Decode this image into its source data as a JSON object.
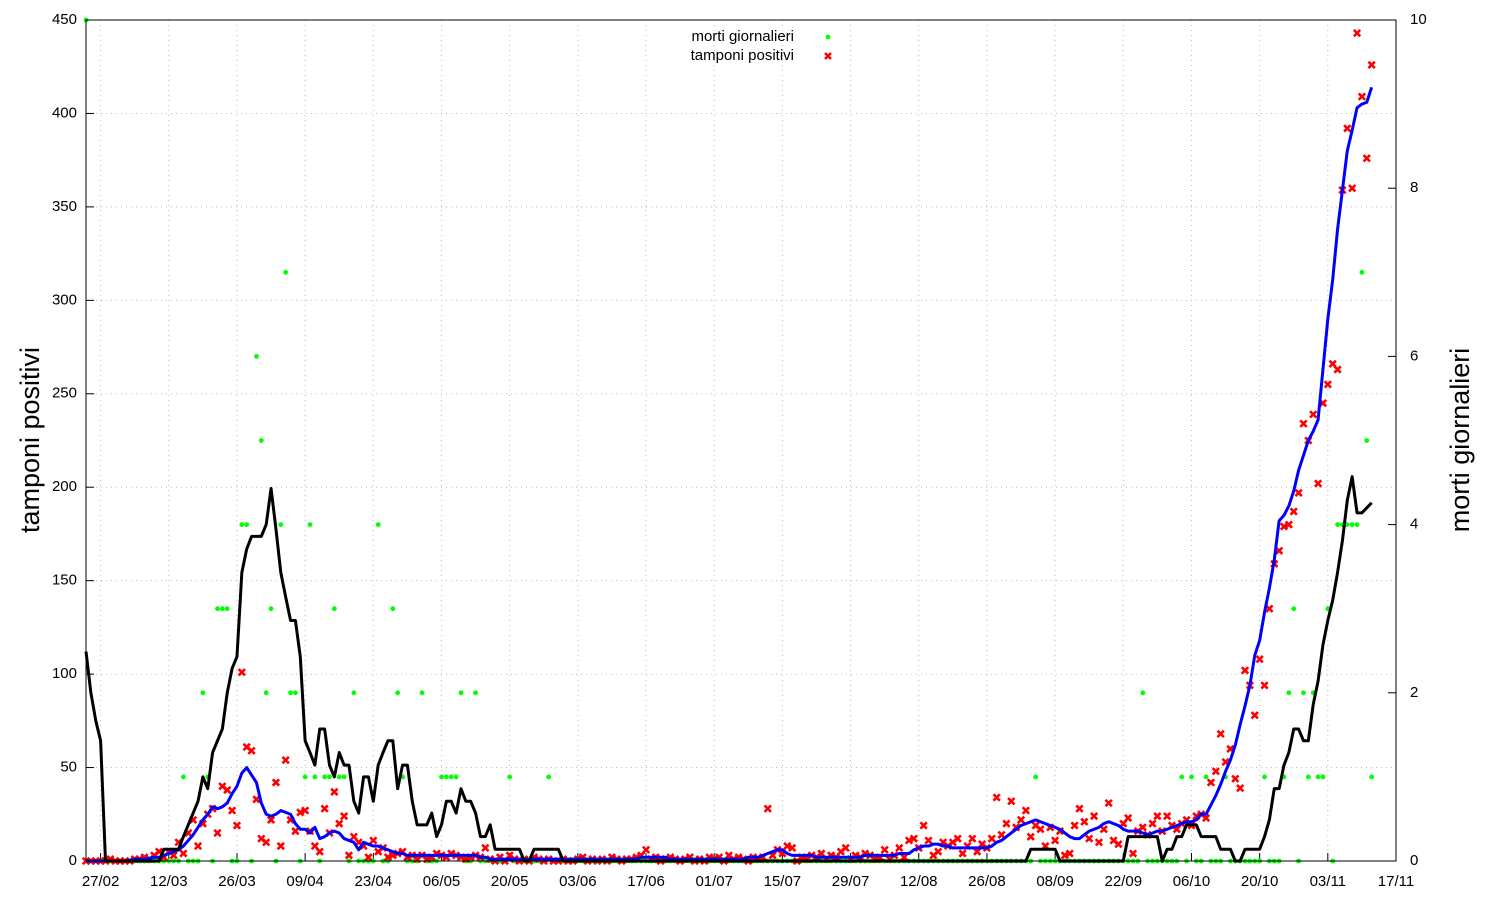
{
  "chart_data": {
    "type": "line",
    "y_label": "tamponi positivi",
    "y2_label": "morti giornalieri",
    "xlim": [
      0,
      269
    ],
    "xticks": [
      {
        "value": 3,
        "label": "27/02"
      },
      {
        "value": 17,
        "label": "12/03"
      },
      {
        "value": 31,
        "label": "26/03"
      },
      {
        "value": 45,
        "label": "09/04"
      },
      {
        "value": 59,
        "label": "23/04"
      },
      {
        "value": 73,
        "label": "06/05"
      },
      {
        "value": 87,
        "label": "20/05"
      },
      {
        "value": 101,
        "label": "03/06"
      },
      {
        "value": 115,
        "label": "17/06"
      },
      {
        "value": 129,
        "label": "01/07"
      },
      {
        "value": 143,
        "label": "15/07"
      },
      {
        "value": 157,
        "label": "29/07"
      },
      {
        "value": 171,
        "label": "12/08"
      },
      {
        "value": 185,
        "label": "26/08"
      },
      {
        "value": 199,
        "label": "08/09"
      },
      {
        "value": 213,
        "label": "22/09"
      },
      {
        "value": 227,
        "label": "06/10"
      },
      {
        "value": 241,
        "label": "20/10"
      },
      {
        "value": 255,
        "label": "03/11"
      },
      {
        "value": 269,
        "label": "17/11"
      }
    ],
    "ylim": [
      0,
      450
    ],
    "yticks": [
      0,
      50,
      100,
      150,
      200,
      250,
      300,
      350,
      400,
      450
    ],
    "y2lim": [
      0,
      10
    ],
    "y2ticks": [
      0,
      2,
      4,
      6,
      8,
      10
    ],
    "grid": true,
    "legend": "top",
    "x": [
      0,
      1,
      2,
      3,
      4,
      5,
      6,
      7,
      8,
      9,
      10,
      11,
      12,
      13,
      14,
      15,
      16,
      17,
      18,
      19,
      20,
      21,
      22,
      23,
      24,
      25,
      26,
      27,
      28,
      29,
      30,
      31,
      32,
      33,
      34,
      35,
      36,
      37,
      38,
      39,
      40,
      41,
      42,
      43,
      44,
      45,
      46,
      47,
      48,
      49,
      50,
      51,
      52,
      53,
      54,
      55,
      56,
      57,
      58,
      59,
      60,
      61,
      62,
      63,
      64,
      65,
      66,
      67,
      68,
      69,
      70,
      71,
      72,
      73,
      74,
      75,
      76,
      77,
      78,
      79,
      80,
      81,
      82,
      83,
      84,
      85,
      86,
      87,
      88,
      89,
      90,
      91,
      92,
      93,
      94,
      95,
      96,
      97,
      98,
      99,
      100,
      101,
      102,
      103,
      104,
      105,
      106,
      107,
      108,
      109,
      110,
      111,
      112,
      113,
      114,
      115,
      116,
      117,
      118,
      119,
      120,
      121,
      122,
      123,
      124,
      125,
      126,
      127,
      128,
      129,
      130,
      131,
      132,
      133,
      134,
      135,
      136,
      137,
      138,
      139,
      140,
      141,
      142,
      143,
      144,
      145,
      146,
      147,
      148,
      149,
      150,
      151,
      152,
      153,
      154,
      155,
      156,
      157,
      158,
      159,
      160,
      161,
      162,
      163,
      164,
      165,
      166,
      167,
      168,
      169,
      170,
      171,
      172,
      173,
      174,
      175,
      176,
      177,
      178,
      179,
      180,
      181,
      182,
      183,
      184,
      185,
      186,
      187,
      188,
      189,
      190,
      191,
      192,
      193,
      194,
      195,
      196,
      197,
      198,
      199,
      200,
      201,
      202,
      203,
      204,
      205,
      206,
      207,
      208,
      209,
      210,
      211,
      212,
      213,
      214,
      215,
      216,
      217,
      218,
      219,
      220,
      221,
      222,
      223,
      224,
      225,
      226,
      227,
      228,
      229,
      230,
      231,
      232,
      233,
      234,
      235,
      236,
      237,
      238,
      239,
      240,
      241,
      242,
      243,
      244,
      245,
      246,
      247,
      248,
      249,
      250,
      251,
      252,
      253,
      254,
      255,
      256,
      257,
      258,
      259,
      260,
      261,
      262,
      263,
      264
    ],
    "series": [
      {
        "name": "morti giornalieri",
        "color": "#00ff00",
        "style": "points",
        "marker": "circle",
        "axis": "y2",
        "values": [
          10,
          0,
          0,
          0,
          0,
          0,
          0,
          0,
          0,
          0,
          0,
          0,
          0,
          0,
          0,
          0,
          0,
          0,
          0,
          0,
          1,
          0,
          0,
          0,
          2,
          1,
          0,
          3,
          3,
          3,
          0,
          0,
          4,
          4,
          0,
          6,
          5,
          2,
          3,
          0,
          4,
          7,
          2,
          2,
          0,
          1,
          4,
          1,
          0,
          1,
          1,
          3,
          1,
          1,
          0,
          2,
          0,
          0,
          0,
          0,
          4,
          0,
          0,
          3,
          2,
          1,
          0,
          0,
          0,
          2,
          0,
          0,
          0,
          1,
          1,
          1,
          1,
          2,
          0,
          0,
          2,
          0,
          0,
          0,
          0,
          0,
          0,
          1,
          0,
          0,
          0,
          0,
          0,
          0,
          0,
          1,
          0,
          0,
          0,
          0,
          0,
          0,
          0,
          0,
          0,
          0,
          0,
          0,
          0,
          0,
          0,
          0,
          0,
          0,
          0,
          0,
          0,
          0,
          0,
          0,
          0,
          0,
          0,
          0,
          0,
          0,
          0,
          0,
          0,
          0,
          0,
          0,
          0,
          0,
          0,
          0,
          0,
          0,
          0,
          0,
          0,
          0,
          0,
          0,
          0,
          0,
          0,
          0,
          0,
          0,
          0,
          0,
          0,
          0,
          0,
          0,
          0,
          0,
          0,
          0,
          0,
          0,
          0,
          0,
          0,
          0,
          0,
          0,
          0,
          0,
          0,
          0,
          0,
          0,
          0,
          0,
          0,
          0,
          0,
          0,
          0,
          0,
          0,
          0,
          0,
          0,
          0,
          0,
          0,
          0,
          0,
          0,
          0,
          0,
          0,
          1,
          0,
          0,
          0,
          0,
          0,
          0,
          0,
          0,
          0,
          0,
          0,
          0,
          0,
          0,
          0,
          0,
          0,
          0,
          0,
          0,
          0,
          2,
          0,
          0,
          0,
          0,
          0,
          0,
          0,
          1,
          0,
          1,
          0,
          0,
          1,
          0,
          0,
          0,
          1,
          0,
          0,
          0,
          0,
          0,
          0,
          0,
          1,
          0,
          0,
          0,
          1,
          2,
          3,
          0,
          2,
          1,
          2,
          1,
          1,
          3,
          0,
          4,
          4,
          4,
          4,
          4,
          7,
          5,
          1
        ]
      },
      {
        "name": "tamponi positivi",
        "color": "#ff0000",
        "style": "points",
        "marker": "cross",
        "values": [
          0,
          0,
          0,
          0,
          0,
          1,
          0,
          0,
          0,
          0,
          1,
          1,
          2,
          1,
          3,
          5,
          2,
          5,
          3,
          10,
          4,
          15,
          22,
          8,
          20,
          25,
          28,
          15,
          40,
          38,
          27,
          19,
          101,
          61,
          59,
          33,
          12,
          10,
          22,
          42,
          8,
          54,
          22,
          16,
          26,
          27,
          16,
          8,
          5,
          28,
          15,
          37,
          20,
          24,
          3,
          13,
          10,
          8,
          2,
          11,
          5,
          7,
          2,
          3,
          4,
          5,
          2,
          3,
          1,
          3,
          1,
          2,
          4,
          3,
          2,
          4,
          3,
          2,
          1,
          2,
          3,
          2,
          7,
          1,
          0,
          2,
          0,
          3,
          1,
          0,
          1,
          0,
          2,
          1,
          0,
          1,
          0,
          0,
          1,
          0,
          0,
          1,
          2,
          0,
          1,
          0,
          1,
          0,
          2,
          1,
          0,
          1,
          1,
          2,
          3,
          6,
          1,
          2,
          0,
          1,
          2,
          1,
          0,
          1,
          2,
          0,
          1,
          0,
          2,
          1,
          2,
          0,
          3,
          1,
          2,
          1,
          0,
          2,
          1,
          2,
          28,
          3,
          6,
          4,
          8,
          7,
          0,
          2,
          1,
          3,
          2,
          4,
          1,
          3,
          2,
          5,
          7,
          1,
          3,
          2,
          4,
          3,
          1,
          2,
          6,
          1,
          3,
          7,
          2,
          11,
          12,
          7,
          19,
          11,
          3,
          5,
          10,
          8,
          10,
          12,
          4,
          8,
          12,
          5,
          9,
          7,
          12,
          34,
          14,
          20,
          32,
          18,
          22,
          27,
          13,
          19,
          17,
          8,
          18,
          11,
          16,
          3,
          4,
          19,
          28,
          21,
          12,
          24,
          10,
          17,
          31,
          11,
          9,
          20,
          23,
          4,
          16,
          18,
          14,
          20,
          24,
          16,
          24,
          19,
          17,
          20,
          22,
          19,
          24,
          25,
          23,
          42,
          48,
          68,
          53,
          60,
          44,
          39,
          102,
          94,
          78,
          108,
          94,
          135,
          159,
          166,
          179,
          180,
          187,
          197,
          234,
          225,
          239,
          202,
          245,
          255,
          266,
          263,
          359,
          392,
          360,
          443,
          409,
          376,
          426
        ]
      },
      {
        "color": "#0000ff",
        "style": "line",
        "values": [
          0,
          0,
          0,
          0,
          0,
          0,
          0,
          0,
          0,
          0.5,
          1,
          1,
          1,
          1.5,
          2,
          2,
          3,
          4,
          5,
          6,
          8,
          11,
          14,
          18,
          22,
          25,
          29,
          28,
          29,
          31,
          36,
          40,
          47,
          50,
          46,
          42,
          31,
          25,
          24,
          25,
          27,
          26,
          25,
          20,
          17,
          17,
          15,
          18,
          12,
          13,
          15,
          16,
          15,
          12,
          11,
          10,
          6,
          10,
          9,
          8,
          8,
          7,
          6,
          5,
          4,
          4,
          3,
          3,
          3,
          3,
          3,
          3,
          3,
          3,
          3,
          3,
          3,
          3,
          3,
          3,
          3,
          2,
          2,
          1,
          1,
          1,
          1,
          1,
          1,
          1,
          1,
          1,
          1,
          1,
          1,
          1,
          1,
          1,
          1,
          1,
          1,
          1,
          1,
          1,
          1,
          1,
          1,
          1,
          1,
          1,
          1,
          1,
          1,
          1,
          2,
          2,
          2,
          2,
          2,
          2,
          1,
          1,
          1,
          1,
          1,
          1,
          1,
          1,
          1,
          1,
          1,
          1,
          1,
          1,
          1,
          1,
          2,
          2,
          2,
          3,
          4,
          5,
          6,
          6,
          4,
          3,
          3,
          3,
          3,
          3,
          2,
          2,
          2,
          2,
          2,
          2,
          2,
          2,
          2,
          2,
          3,
          3,
          3,
          3,
          3,
          3,
          3,
          4,
          4,
          4,
          6,
          7,
          8,
          8,
          9,
          9,
          8,
          8,
          7,
          7,
          7,
          7,
          7,
          7,
          7,
          7,
          8,
          10,
          11,
          13,
          15,
          17,
          19,
          20,
          21,
          22,
          21,
          20,
          19,
          18,
          17,
          15,
          13,
          12,
          12,
          14,
          16,
          17,
          18,
          20,
          21,
          20,
          19,
          17,
          16,
          16,
          16,
          15,
          14,
          15,
          16,
          16,
          17,
          18,
          19,
          20,
          21,
          21,
          22,
          25,
          25,
          30,
          35,
          41,
          48,
          54,
          62,
          73,
          83,
          94,
          110,
          118,
          133,
          146,
          161,
          182,
          185,
          190,
          198,
          209,
          217,
          225,
          230,
          236,
          263,
          290,
          311,
          338,
          359,
          380,
          391,
          403,
          405,
          406,
          414
        ]
      },
      {
        "color": "#000000",
        "style": "line",
        "axis": "y2",
        "values": [
          2.49,
          2.0,
          1.67,
          1.43,
          0,
          0,
          0,
          0,
          0,
          0,
          0,
          0,
          0,
          0,
          0,
          0,
          0.14,
          0.14,
          0.14,
          0.14,
          0.29,
          0.43,
          0.57,
          0.71,
          1.0,
          0.86,
          1.29,
          1.43,
          1.57,
          2.0,
          2.29,
          2.43,
          3.43,
          3.71,
          3.86,
          3.86,
          3.86,
          4.0,
          4.43,
          3.95,
          3.43,
          3.14,
          2.86,
          2.86,
          2.43,
          1.43,
          1.29,
          1.14,
          1.57,
          1.57,
          1.14,
          1.0,
          1.29,
          1.14,
          1.14,
          0.71,
          0.57,
          1.0,
          1.0,
          0.71,
          1.14,
          1.29,
          1.43,
          1.43,
          0.86,
          1.14,
          1.14,
          0.71,
          0.43,
          0.43,
          0.43,
          0.57,
          0.29,
          0.43,
          0.71,
          0.71,
          0.57,
          0.86,
          0.71,
          0.71,
          0.57,
          0.29,
          0.29,
          0.43,
          0.14,
          0.14,
          0.14,
          0.14,
          0.14,
          0.14,
          0,
          0,
          0.14,
          0.14,
          0.14,
          0.14,
          0.14,
          0.14,
          0,
          0,
          0,
          0,
          0,
          0,
          0,
          0,
          0,
          0,
          0,
          0,
          0,
          0,
          0,
          0,
          0,
          0,
          0,
          0,
          0,
          0,
          0,
          0,
          0,
          0,
          0,
          0,
          0,
          0,
          0,
          0,
          0,
          0,
          0,
          0,
          0,
          0,
          0,
          0,
          0,
          0,
          0,
          0,
          0,
          0,
          0,
          0,
          0,
          0,
          0,
          0,
          0,
          0,
          0,
          0,
          0,
          0,
          0,
          0,
          0,
          0,
          0,
          0,
          0,
          0,
          0,
          0,
          0,
          0,
          0,
          0,
          0,
          0,
          0,
          0,
          0,
          0,
          0,
          0,
          0,
          0,
          0,
          0,
          0,
          0,
          0,
          0,
          0,
          0,
          0,
          0,
          0,
          0,
          0,
          0,
          0.14,
          0.14,
          0.14,
          0.14,
          0.14,
          0.14,
          0,
          0,
          0,
          0,
          0,
          0,
          0,
          0,
          0,
          0,
          0,
          0,
          0,
          0,
          0.29,
          0.29,
          0.29,
          0.29,
          0.29,
          0.29,
          0.29,
          0,
          0.14,
          0.14,
          0.29,
          0.29,
          0.43,
          0.43,
          0.43,
          0.29,
          0.29,
          0.29,
          0.29,
          0.14,
          0.14,
          0.14,
          0,
          0,
          0.14,
          0.14,
          0.14,
          0.14,
          0.29,
          0.49,
          0.86,
          0.86,
          1.14,
          1.29,
          1.57,
          1.57,
          1.43,
          1.43,
          1.86,
          2.14,
          2.57,
          2.86,
          3.1,
          3.43,
          3.81,
          4.29,
          4.57,
          4.14,
          4.14,
          4.2,
          4.26
        ]
      }
    ]
  }
}
